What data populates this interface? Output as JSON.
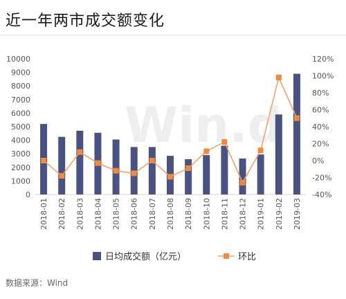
{
  "title": "近一年两市成交额变化",
  "source": "数据来源：Wind",
  "watermark": "Win.d",
  "colors": {
    "bar": "#4a5282",
    "line": "#f5a266",
    "marker": "#f08a3c",
    "axis": "#d0d0d0"
  },
  "chart_data": {
    "type": "bar",
    "categories": [
      "2018-01",
      "2018-02",
      "2018-03",
      "2018-04",
      "2018-05",
      "2018-06",
      "2018-07",
      "2018-08",
      "2018-09",
      "2018-10",
      "2018-11",
      "2018-12",
      "2019-01",
      "2019-02",
      "2019-03"
    ],
    "series": [
      {
        "name": "日均成交额（亿元）",
        "type": "bar",
        "axis": "left",
        "values": [
          5200,
          4250,
          4700,
          4550,
          4050,
          3500,
          3500,
          2850,
          2600,
          2900,
          3600,
          2650,
          2950,
          5900,
          8900
        ]
      },
      {
        "name": "环比",
        "type": "line",
        "axis": "right",
        "values": [
          0,
          -18,
          10,
          -3,
          -12,
          -15,
          0,
          -19,
          -9,
          11,
          22,
          -26,
          12,
          98,
          50
        ]
      }
    ],
    "y_left": {
      "min": 0,
      "max": 10000,
      "ticks": [
        "0",
        "1000",
        "2000",
        "3000",
        "4000",
        "5000",
        "6000",
        "7000",
        "8000",
        "9000",
        "10000"
      ]
    },
    "y_right": {
      "min": -40,
      "max": 120,
      "ticks": [
        "-40%",
        "-20%",
        "0%",
        "20%",
        "40%",
        "60%",
        "80%",
        "100%",
        "120%"
      ]
    },
    "legend_position": "bottom"
  }
}
